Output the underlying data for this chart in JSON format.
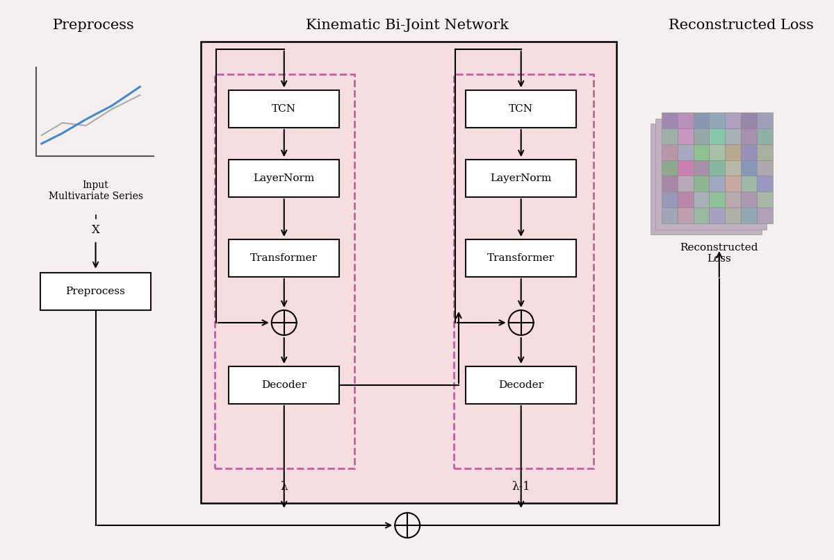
{
  "title_preprocess": "Preprocess",
  "title_network": "Kinematic Bi-Joint Network",
  "title_loss": "Reconstructed Loss",
  "bg_color": "#f5eff2",
  "network_bg_color": "#f5dde0",
  "box_color": "#ffffff",
  "box_edge_color": "#111111",
  "dashed_color": "#c060a0",
  "arrow_color": "#111111",
  "lambda_label": "λ",
  "lambda1_label": "λ-1",
  "preprocess_label": "Preprocess",
  "input_label": "Input\nMultivariate Series",
  "recon_label": "Reconstructed\nLoss",
  "x_label": "X",
  "colors_grid": [
    [
      "#a088b0",
      "#b890b8",
      "#8898b0",
      "#90a8b8",
      "#b0a0c0",
      "#9888a8",
      "#a0a0b8"
    ],
    [
      "#a0b0a8",
      "#c898c0",
      "#98a8a8",
      "#88c8a8",
      "#a8b0b8",
      "#a890b0",
      "#90b0a8"
    ],
    [
      "#b898a8",
      "#a8a8c0",
      "#90c090",
      "#a8c0a8",
      "#b8a890",
      "#9890b8",
      "#a8b0a0"
    ],
    [
      "#90a890",
      "#c880b0",
      "#a890a8",
      "#88b8a0",
      "#b8b8a8",
      "#8898b8",
      "#b0a8b0"
    ],
    [
      "#a888a8",
      "#b8a8b8",
      "#90b890",
      "#a0a8c0",
      "#c8a8a0",
      "#a0b8a8",
      "#9898c0"
    ],
    [
      "#9898b8",
      "#b888a8",
      "#a8b0b8",
      "#90c098",
      "#b8a8b0",
      "#a898b0",
      "#a8b8a8"
    ],
    [
      "#a0a8b8",
      "#c0a0b0",
      "#98b8a0",
      "#a8a0c0",
      "#b0b0a8",
      "#90a8b8",
      "#b0a0b8"
    ]
  ]
}
